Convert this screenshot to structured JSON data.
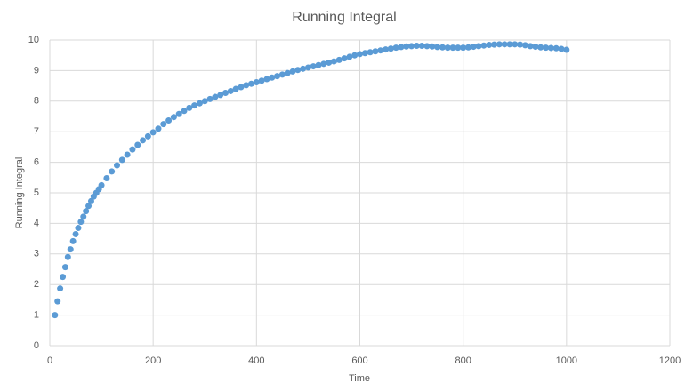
{
  "chart_data": {
    "type": "scatter",
    "title": "Running Integral",
    "x_label": "Time",
    "y_label": "Running Integral",
    "series": [
      {
        "name": "Running Integral",
        "color": "#5b9bd5",
        "x": [
          10,
          15,
          20,
          25,
          30,
          35,
          40,
          45,
          50,
          55,
          60,
          65,
          70,
          75,
          80,
          85,
          90,
          95,
          100,
          110,
          120,
          130,
          140,
          150,
          160,
          170,
          180,
          190,
          200,
          210,
          220,
          230,
          240,
          250,
          260,
          270,
          280,
          290,
          300,
          310,
          320,
          330,
          340,
          350,
          360,
          370,
          380,
          390,
          400,
          410,
          420,
          430,
          440,
          450,
          460,
          470,
          480,
          490,
          500,
          510,
          520,
          530,
          540,
          550,
          560,
          570,
          580,
          590,
          600,
          610,
          620,
          630,
          640,
          650,
          660,
          670,
          680,
          690,
          700,
          710,
          720,
          730,
          740,
          750,
          760,
          770,
          780,
          790,
          800,
          810,
          820,
          830,
          840,
          850,
          860,
          870,
          880,
          890,
          900,
          910,
          920,
          930,
          940,
          950,
          960,
          970,
          980,
          990,
          1000
        ],
        "values": [
          1.0,
          1.45,
          1.87,
          2.25,
          2.57,
          2.9,
          3.15,
          3.42,
          3.65,
          3.85,
          4.05,
          4.22,
          4.4,
          4.57,
          4.73,
          4.88,
          5.0,
          5.12,
          5.25,
          5.48,
          5.7,
          5.9,
          6.08,
          6.25,
          6.42,
          6.57,
          6.72,
          6.85,
          6.98,
          7.1,
          7.25,
          7.37,
          7.48,
          7.58,
          7.68,
          7.78,
          7.86,
          7.93,
          8.0,
          8.07,
          8.14,
          8.2,
          8.27,
          8.33,
          8.4,
          8.46,
          8.52,
          8.57,
          8.62,
          8.67,
          8.72,
          8.77,
          8.82,
          8.87,
          8.92,
          8.97,
          9.02,
          9.06,
          9.1,
          9.14,
          9.18,
          9.22,
          9.26,
          9.3,
          9.35,
          9.4,
          9.45,
          9.5,
          9.54,
          9.57,
          9.6,
          9.63,
          9.66,
          9.69,
          9.72,
          9.75,
          9.77,
          9.79,
          9.8,
          9.81,
          9.81,
          9.8,
          9.79,
          9.77,
          9.76,
          9.75,
          9.75,
          9.75,
          9.75,
          9.76,
          9.78,
          9.8,
          9.82,
          9.84,
          9.85,
          9.86,
          9.86,
          9.86,
          9.86,
          9.85,
          9.83,
          9.8,
          9.78,
          9.76,
          9.75,
          9.74,
          9.73,
          9.71,
          9.68
        ]
      }
    ],
    "xlim": [
      0,
      1200
    ],
    "xticks": [
      0,
      200,
      400,
      600,
      800,
      1000,
      1200
    ],
    "ylim": [
      0,
      10
    ],
    "yticks": [
      0,
      1,
      2,
      3,
      4,
      5,
      6,
      7,
      8,
      9,
      10
    ],
    "grid": true
  }
}
